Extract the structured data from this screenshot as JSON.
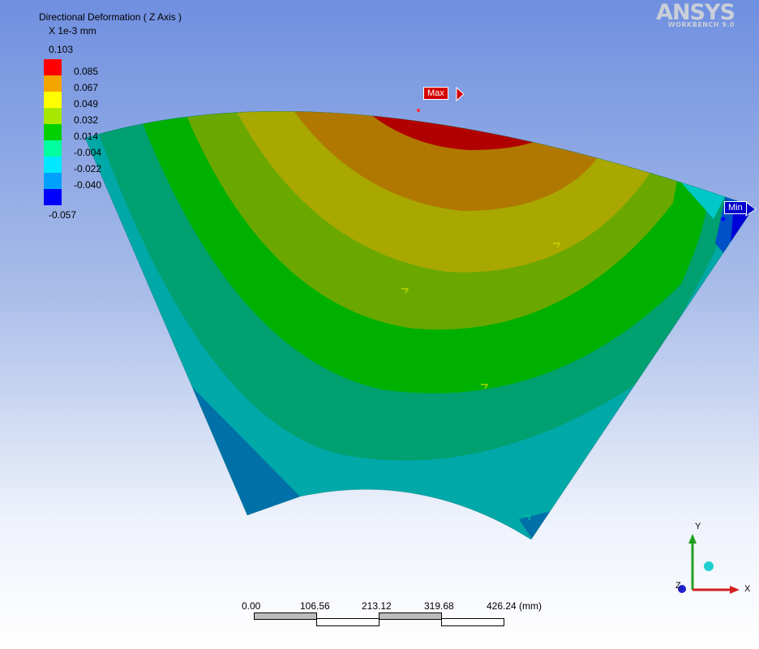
{
  "legend": {
    "title": "Directional Deformation ( Z Axis )",
    "units": "X 1e-3 mm",
    "max_value": "0.103",
    "min_value": "-0.057",
    "levels": [
      {
        "label": "0.085",
        "color": "#ff0000"
      },
      {
        "label": "0.067",
        "color": "#f5a500"
      },
      {
        "label": "0.049",
        "color": "#ffff00"
      },
      {
        "label": "0.032",
        "color": "#a8e800"
      },
      {
        "label": "0.014",
        "color": "#00d000"
      },
      {
        "label": "-0.004",
        "color": "#00ffa0"
      },
      {
        "label": "-0.022",
        "color": "#00e8ff"
      },
      {
        "label": "-0.040",
        "color": "#00a0ff"
      },
      {
        "label": "",
        "color": "#0000ff"
      }
    ]
  },
  "logo": {
    "brand": "ANSYS",
    "product": "WORKBENCH 9.0"
  },
  "markers": {
    "max_label": "Max",
    "min_label": "Min"
  },
  "scale_bar": {
    "ticks": [
      "0.00",
      "106.56",
      "213.12",
      "319.68",
      "426.24 (mm)"
    ]
  },
  "triad": {
    "x_label": "X",
    "y_label": "Y",
    "z_label": "Z",
    "x_color": "#d42020",
    "y_color": "#20a020",
    "z_color": "#2020d0"
  },
  "contour_colors": [
    "#0070a8",
    "#00a8a8",
    "#00a070",
    "#00b000",
    "#6aa800",
    "#a8a800",
    "#b07800",
    "#b00000"
  ]
}
